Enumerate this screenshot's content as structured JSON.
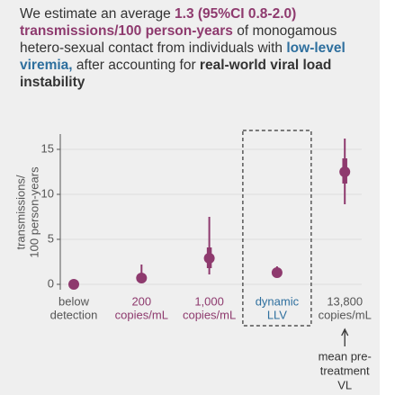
{
  "header": {
    "lines": [
      [
        {
          "text": "We estimate an average ",
          "style": "plain"
        },
        {
          "text": "1.3 (95%CI 0.8-2.0)",
          "style": "purple"
        }
      ],
      [
        {
          "text": "transmissions/100 person-years",
          "style": "purple"
        },
        {
          "text": " of monogamous",
          "style": "plain"
        }
      ],
      [
        {
          "text": "hetero-sexual contact from individuals with ",
          "style": "plain"
        },
        {
          "text": "low-level",
          "style": "blue"
        }
      ],
      [
        {
          "text": "viremia,",
          "style": "blue"
        },
        {
          "text": " after accounting for ",
          "style": "plain"
        },
        {
          "text": "real-world viral load",
          "style": "bold"
        }
      ],
      [
        {
          "text": "instability",
          "style": "bold"
        }
      ]
    ]
  },
  "chart_data": {
    "type": "pointrange",
    "ylabel": [
      "transmissions/",
      "100 person-years"
    ],
    "categories": [
      [
        "below",
        "detection"
      ],
      [
        "200",
        "copies/mL"
      ],
      [
        "1,000",
        "copies/mL"
      ],
      [
        "dynamic",
        "LLV"
      ],
      [
        "13,800",
        "copies/mL"
      ]
    ],
    "category_colors": [
      "#555555",
      "#8e3a6e",
      "#8e3a6e",
      "#2e6f9e",
      "#555555"
    ],
    "values": [
      0,
      0.7,
      2.9,
      1.3,
      12.5
    ],
    "inner_intervals": [
      null,
      [
        0.4,
        1.0
      ],
      [
        1.8,
        4.1
      ],
      [
        1.0,
        1.6
      ],
      [
        11.2,
        14.0
      ]
    ],
    "outer_intervals": [
      null,
      [
        0.2,
        2.2
      ],
      [
        1.1,
        7.5
      ],
      [
        0.8,
        2.0
      ],
      [
        8.9,
        16.2
      ]
    ],
    "color": "#8e3a6e",
    "ylim": [
      -0.6,
      16.5
    ],
    "yticks": [
      0,
      5,
      10,
      15
    ],
    "grid": true,
    "highlight_category": 3,
    "annotation": {
      "category": 4,
      "lines": [
        "mean pre-",
        "treatment",
        "VL"
      ]
    }
  }
}
